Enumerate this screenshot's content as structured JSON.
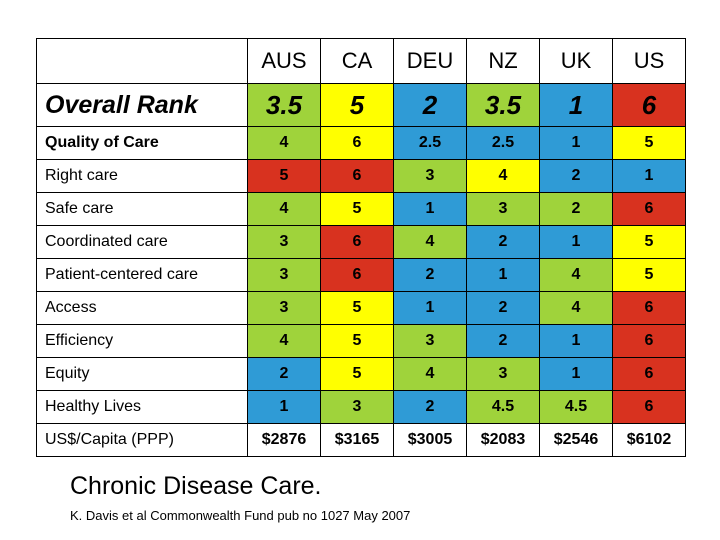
{
  "table": {
    "countries": [
      "AUS",
      "CA",
      "DEU",
      "NZ",
      "UK",
      "US"
    ],
    "overall": {
      "label": "Overall Rank",
      "values": [
        "3.5",
        "5",
        "2",
        "3.5",
        "1",
        "6"
      ],
      "colors": [
        "#9FD33B",
        "#FFFF00",
        "#2F9BD6",
        "#9FD33B",
        "#2F9BD6",
        "#D8321F"
      ]
    },
    "rows": [
      {
        "label": "Quality of Care",
        "values": [
          "4",
          "6",
          "2.5",
          "2.5",
          "1",
          "5"
        ],
        "colors": [
          "#9FD33B",
          "#FFFF00",
          "#2F9BD6",
          "#2F9BD6",
          "#2F9BD6",
          "#FFFF00"
        ]
      },
      {
        "label": "Right care",
        "values": [
          "5",
          "6",
          "3",
          "4",
          "2",
          "1"
        ],
        "colors": [
          "#D8321F",
          "#D8321F",
          "#9FD33B",
          "#FFFF00",
          "#2F9BD6",
          "#2F9BD6"
        ]
      },
      {
        "label": "Safe care",
        "values": [
          "4",
          "5",
          "1",
          "3",
          "2",
          "6"
        ],
        "colors": [
          "#9FD33B",
          "#FFFF00",
          "#2F9BD6",
          "#9FD33B",
          "#9FD33B",
          "#D8321F"
        ]
      },
      {
        "label": "Coordinated care",
        "values": [
          "3",
          "6",
          "4",
          "2",
          "1",
          "5"
        ],
        "colors": [
          "#9FD33B",
          "#D8321F",
          "#9FD33B",
          "#2F9BD6",
          "#2F9BD6",
          "#FFFF00"
        ]
      },
      {
        "label": "Patient-centered care",
        "values": [
          "3",
          "6",
          "2",
          "1",
          "4",
          "5"
        ],
        "colors": [
          "#9FD33B",
          "#D8321F",
          "#2F9BD6",
          "#2F9BD6",
          "#9FD33B",
          "#FFFF00"
        ]
      },
      {
        "label": "Access",
        "values": [
          "3",
          "5",
          "1",
          "2",
          "4",
          "6"
        ],
        "colors": [
          "#9FD33B",
          "#FFFF00",
          "#2F9BD6",
          "#2F9BD6",
          "#9FD33B",
          "#D8321F"
        ]
      },
      {
        "label": "Efficiency",
        "values": [
          "4",
          "5",
          "3",
          "2",
          "1",
          "6"
        ],
        "colors": [
          "#9FD33B",
          "#FFFF00",
          "#9FD33B",
          "#2F9BD6",
          "#2F9BD6",
          "#D8321F"
        ]
      },
      {
        "label": "Equity",
        "values": [
          "2",
          "5",
          "4",
          "3",
          "1",
          "6"
        ],
        "colors": [
          "#2F9BD6",
          "#FFFF00",
          "#9FD33B",
          "#9FD33B",
          "#2F9BD6",
          "#D8321F"
        ]
      },
      {
        "label": "Healthy Lives",
        "values": [
          "1",
          "3",
          "2",
          "4.5",
          "4.5",
          "6"
        ],
        "colors": [
          "#2F9BD6",
          "#9FD33B",
          "#2F9BD6",
          "#9FD33B",
          "#9FD33B",
          "#D8321F"
        ]
      }
    ],
    "cost": {
      "label": "US$/Capita (PPP)",
      "values": [
        "$2876",
        "$3165",
        "$3005",
        "$2083",
        "$2546",
        "$6102"
      ]
    }
  },
  "footer": {
    "title": "Chronic Disease Care.",
    "source": "K. Davis et al Commonwealth Fund pub no 1027 May 2007"
  }
}
